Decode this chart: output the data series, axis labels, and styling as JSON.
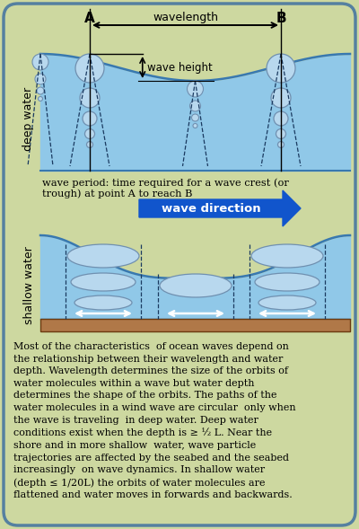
{
  "bg_color": "#cdd8a0",
  "border_color": "#5580a0",
  "water_color": "#90c8e8",
  "water_dark": "#3878b0",
  "orbit_color": "#b8d8ee",
  "orbit_edge": "#7090b0",
  "seabed_color": "#b07848",
  "arrow_blue": "#1155cc",
  "deep_water_label": "deep water",
  "shallow_water_label": "shallow water",
  "point_A": "A",
  "point_B": "B",
  "wavelength_label": "wavelength",
  "wave_height_label": "wave height",
  "wave_direction_label": "wave direction",
  "wave_period_text": "wave period: time required for a wave crest (or\ntrough) at point A to reach B",
  "body_text": "Most of the characteristics  of ocean waves depend on\nthe relationship between their wavelength and water\ndepth. Wavelength determines the size of the orbits of\nwater molecules within a wave but water depth\ndetermines the shape of the orbits. The paths of the\nwater molecules in a wind wave are circular  only when\nthe wave is traveling  in deep water. Deep water\nconditions exist when the depth is ≥ ½ L. Near the\nshore and in more shallow  water, wave particle\ntrajectories are affected by the seabed and the seabed\nincreasingly  on wave dynamics. In shallow water\n(depth ≤ 1/20L) the orbits of water molecules are\nflattened and water moves in forwards and backwards.",
  "fig_w": 4.0,
  "fig_h": 5.89,
  "dpi": 100
}
